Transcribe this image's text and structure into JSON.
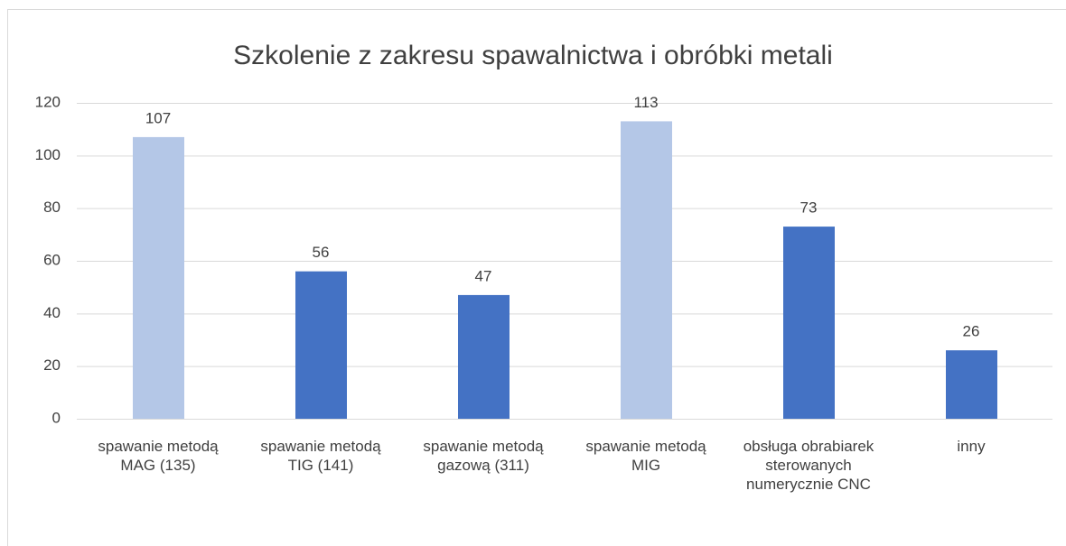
{
  "chart_data": {
    "type": "bar",
    "title": "Szkolenie z zakresu spawalnictwa i obróbki metali",
    "categories": [
      "spawanie metodą MAG (135)",
      "spawanie metodą TIG (141)",
      "spawanie metodą gazową (311)",
      "spawanie metodą MIG",
      "obsługa obrabiarek sterowanych numerycznie CNC",
      "inny"
    ],
    "values": [
      107,
      56,
      47,
      113,
      73,
      26
    ],
    "colors": [
      "#b4c7e7",
      "#4472c4",
      "#4472c4",
      "#b4c7e7",
      "#4472c4",
      "#4472c4"
    ],
    "ylim": [
      0,
      120
    ],
    "yticks": [
      0,
      20,
      40,
      60,
      80,
      100,
      120
    ],
    "grid": true
  }
}
